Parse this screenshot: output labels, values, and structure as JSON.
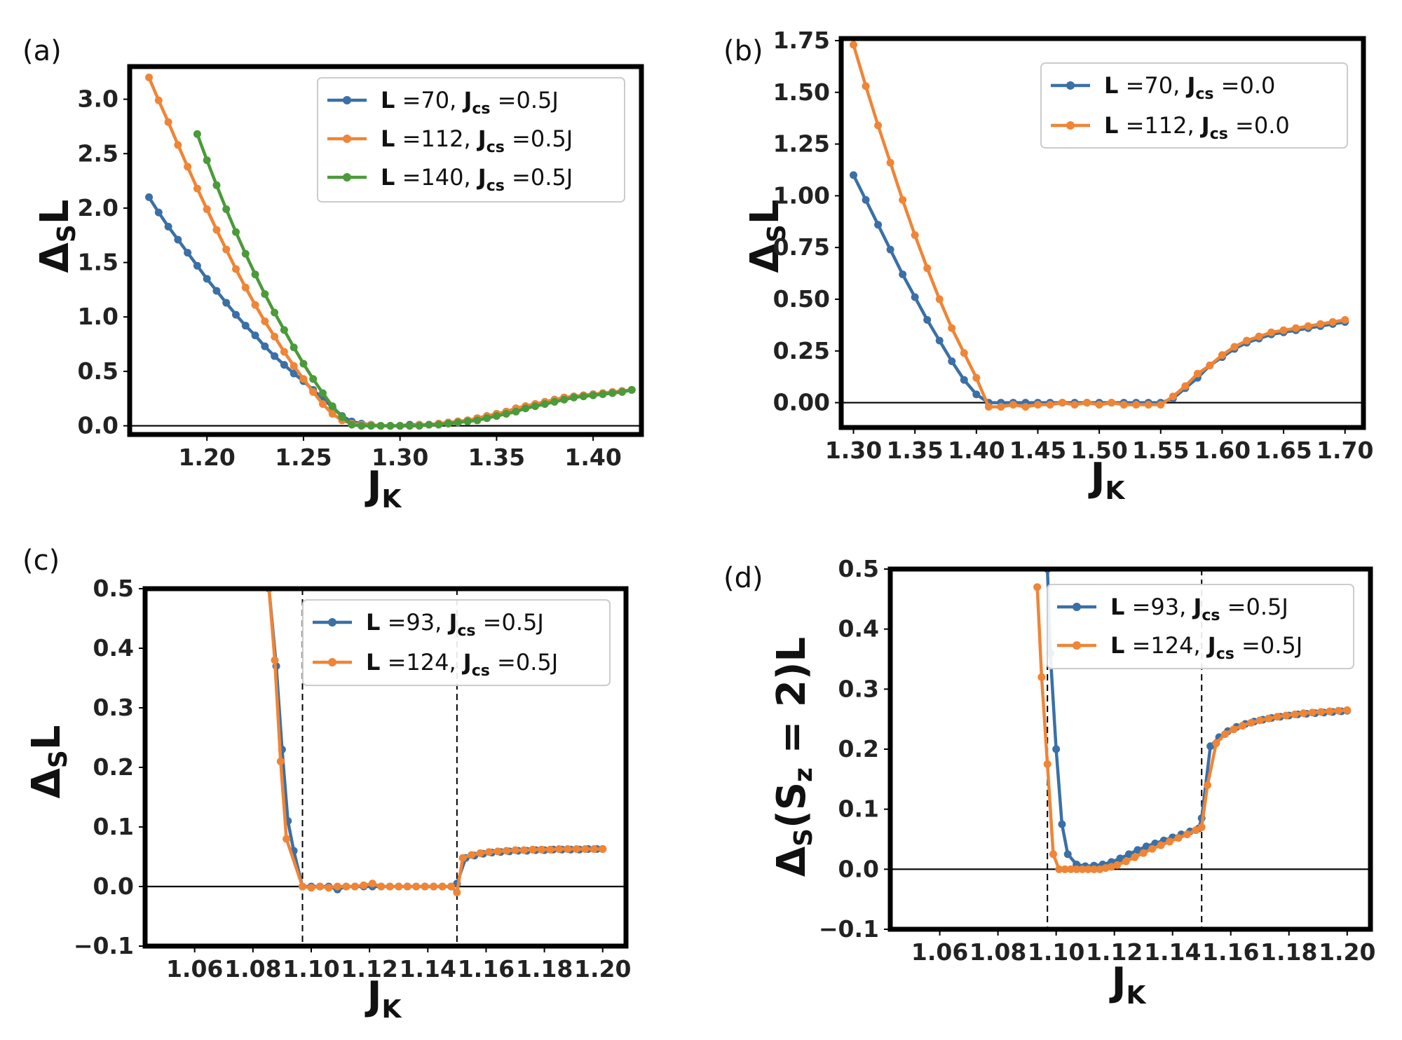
{
  "colors": {
    "blue": "#3a70a6",
    "orange": "#ef8536",
    "green": "#4b9a3b"
  },
  "chart_data": [
    {
      "type": "line",
      "panel_label": "(a)",
      "xlabel": "J_K",
      "ylabel": "Δ_S L",
      "xlim": [
        1.16,
        1.425
      ],
      "ylim": [
        -0.08,
        3.3
      ],
      "xticks": [
        1.2,
        1.25,
        1.3,
        1.35,
        1.4
      ],
      "xtick_labels": [
        "1.20",
        "1.25",
        "1.30",
        "1.35",
        "1.40"
      ],
      "yticks": [
        0,
        0.5,
        1,
        1.5,
        2,
        2.5,
        3
      ],
      "ytick_labels": [
        "0.0",
        "0.5",
        "1.0",
        "1.5",
        "2.0",
        "2.5",
        "3.0"
      ],
      "hline": 0,
      "vlines": [],
      "legend_position": "top-right",
      "series": [
        {
          "name": "L =70, J_cs =0.5J",
          "L": "70",
          "Jcs": "0.5J",
          "color": "blue",
          "x": [
            1.17,
            1.175,
            1.18,
            1.185,
            1.19,
            1.195,
            1.2,
            1.205,
            1.21,
            1.215,
            1.22,
            1.225,
            1.23,
            1.235,
            1.24,
            1.245,
            1.25,
            1.255,
            1.26,
            1.265,
            1.27,
            1.275,
            1.28,
            1.285,
            1.29,
            1.295,
            1.3,
            1.305,
            1.31,
            1.315,
            1.32,
            1.325,
            1.33,
            1.335,
            1.34,
            1.345,
            1.35,
            1.355,
            1.36,
            1.365,
            1.37,
            1.375,
            1.38,
            1.385,
            1.39,
            1.395,
            1.4,
            1.405,
            1.41,
            1.415,
            1.42
          ],
          "y": [
            2.1,
            1.96,
            1.83,
            1.71,
            1.59,
            1.47,
            1.35,
            1.24,
            1.13,
            1.02,
            0.92,
            0.83,
            0.73,
            0.64,
            0.56,
            0.48,
            0.41,
            0.33,
            0.25,
            0.17,
            0.09,
            0.04,
            0.02,
            0.01,
            0.0,
            0.0,
            0.0,
            0.01,
            0.01,
            0.01,
            0.02,
            0.03,
            0.04,
            0.05,
            0.07,
            0.09,
            0.11,
            0.13,
            0.16,
            0.18,
            0.2,
            0.22,
            0.24,
            0.26,
            0.27,
            0.28,
            0.29,
            0.3,
            0.31,
            0.32,
            0.33
          ]
        },
        {
          "name": "L =112, J_cs =0.5J",
          "L": "112",
          "Jcs": "0.5J",
          "color": "orange",
          "x": [
            1.17,
            1.175,
            1.18,
            1.185,
            1.19,
            1.195,
            1.2,
            1.205,
            1.21,
            1.215,
            1.22,
            1.225,
            1.23,
            1.235,
            1.24,
            1.245,
            1.25,
            1.255,
            1.26,
            1.265,
            1.27,
            1.275,
            1.28,
            1.285,
            1.29,
            1.295,
            1.3,
            1.305,
            1.31,
            1.315,
            1.32,
            1.325,
            1.33,
            1.335,
            1.34,
            1.345,
            1.35,
            1.355,
            1.36,
            1.365,
            1.37,
            1.375,
            1.38,
            1.385,
            1.39,
            1.395,
            1.4,
            1.405,
            1.41,
            1.415,
            1.42
          ],
          "y": [
            3.2,
            2.99,
            2.79,
            2.58,
            2.38,
            2.18,
            1.99,
            1.8,
            1.62,
            1.44,
            1.27,
            1.11,
            0.96,
            0.82,
            0.68,
            0.55,
            0.43,
            0.31,
            0.2,
            0.11,
            0.05,
            0.02,
            0.01,
            0.01,
            0.0,
            0.0,
            0.0,
            0.0,
            0.01,
            0.01,
            0.02,
            0.03,
            0.04,
            0.05,
            0.07,
            0.09,
            0.11,
            0.13,
            0.16,
            0.18,
            0.2,
            0.22,
            0.24,
            0.26,
            0.27,
            0.28,
            0.29,
            0.3,
            0.31,
            0.32,
            0.33
          ]
        },
        {
          "name": "L =140, J_cs =0.5J",
          "L": "140",
          "Jcs": "0.5J",
          "color": "green",
          "x": [
            1.195,
            1.2,
            1.205,
            1.21,
            1.215,
            1.22,
            1.225,
            1.23,
            1.235,
            1.24,
            1.245,
            1.25,
            1.255,
            1.26,
            1.265,
            1.27,
            1.275,
            1.28,
            1.285,
            1.29,
            1.295,
            1.3,
            1.305,
            1.31,
            1.315,
            1.32,
            1.325,
            1.33,
            1.335,
            1.34,
            1.345,
            1.35,
            1.355,
            1.36,
            1.365,
            1.37,
            1.375,
            1.38,
            1.385,
            1.39,
            1.395,
            1.4,
            1.405,
            1.41,
            1.415,
            1.42
          ],
          "y": [
            2.68,
            2.44,
            2.21,
            1.99,
            1.78,
            1.58,
            1.39,
            1.21,
            1.04,
            0.88,
            0.72,
            0.57,
            0.43,
            0.3,
            0.18,
            0.08,
            0.01,
            0.0,
            0.0,
            0.0,
            0.0,
            0.0,
            0.0,
            0.0,
            0.01,
            0.01,
            0.02,
            0.03,
            0.04,
            0.05,
            0.07,
            0.09,
            0.11,
            0.13,
            0.16,
            0.18,
            0.2,
            0.22,
            0.24,
            0.26,
            0.27,
            0.28,
            0.29,
            0.3,
            0.31,
            0.33
          ]
        }
      ]
    },
    {
      "type": "line",
      "panel_label": "(b)",
      "xlabel": "J_K",
      "ylabel": "Δ_S L",
      "xlim": [
        1.29,
        1.715
      ],
      "ylim": [
        -0.12,
        1.76
      ],
      "xticks": [
        1.3,
        1.35,
        1.4,
        1.45,
        1.5,
        1.55,
        1.6,
        1.65,
        1.7
      ],
      "xtick_labels": [
        "1.30",
        "1.35",
        "1.40",
        "1.45",
        "1.50",
        "1.55",
        "1.60",
        "1.65",
        "1.70"
      ],
      "yticks": [
        0,
        0.25,
        0.5,
        0.75,
        1,
        1.25,
        1.5,
        1.75
      ],
      "ytick_labels": [
        "0.00",
        "0.25",
        "0.50",
        "0.75",
        "1.00",
        "1.25",
        "1.50",
        "1.75"
      ],
      "hline": 0,
      "vlines": [],
      "legend_position": "top-right",
      "series": [
        {
          "name": "L =70, J_cs =0.0",
          "L": "70",
          "Jcs": "0.0",
          "color": "blue",
          "x": [
            1.3,
            1.31,
            1.32,
            1.33,
            1.34,
            1.35,
            1.36,
            1.37,
            1.38,
            1.39,
            1.4,
            1.41,
            1.42,
            1.43,
            1.44,
            1.45,
            1.46,
            1.47,
            1.48,
            1.49,
            1.5,
            1.51,
            1.52,
            1.53,
            1.54,
            1.55,
            1.56,
            1.57,
            1.58,
            1.59,
            1.6,
            1.61,
            1.62,
            1.63,
            1.64,
            1.65,
            1.66,
            1.67,
            1.68,
            1.69,
            1.7
          ],
          "y": [
            1.1,
            0.98,
            0.86,
            0.74,
            0.62,
            0.51,
            0.4,
            0.3,
            0.2,
            0.11,
            0.04,
            0.0,
            0.0,
            0.0,
            0.0,
            0.0,
            0.0,
            0.0,
            0.0,
            0.0,
            0.0,
            0.0,
            0.0,
            0.0,
            0.0,
            0.0,
            0.02,
            0.07,
            0.12,
            0.18,
            0.22,
            0.26,
            0.29,
            0.31,
            0.33,
            0.34,
            0.35,
            0.36,
            0.37,
            0.38,
            0.39
          ]
        },
        {
          "name": "L =112, J_cs =0.0",
          "L": "112",
          "Jcs": "0.0",
          "color": "orange",
          "x": [
            1.3,
            1.31,
            1.32,
            1.33,
            1.34,
            1.35,
            1.36,
            1.37,
            1.38,
            1.39,
            1.4,
            1.41,
            1.42,
            1.43,
            1.44,
            1.45,
            1.46,
            1.47,
            1.48,
            1.49,
            1.5,
            1.51,
            1.52,
            1.53,
            1.54,
            1.55,
            1.56,
            1.57,
            1.58,
            1.59,
            1.6,
            1.61,
            1.62,
            1.63,
            1.64,
            1.65,
            1.66,
            1.67,
            1.68,
            1.69,
            1.7
          ],
          "y": [
            1.73,
            1.53,
            1.34,
            1.16,
            0.98,
            0.81,
            0.65,
            0.5,
            0.36,
            0.24,
            0.12,
            -0.02,
            -0.02,
            -0.01,
            -0.02,
            -0.01,
            -0.01,
            0.0,
            -0.01,
            0.0,
            -0.01,
            0.0,
            -0.01,
            -0.01,
            -0.01,
            -0.01,
            0.03,
            0.08,
            0.14,
            0.18,
            0.23,
            0.27,
            0.3,
            0.32,
            0.34,
            0.35,
            0.36,
            0.37,
            0.38,
            0.39,
            0.4
          ]
        }
      ]
    },
    {
      "type": "line",
      "panel_label": "(c)",
      "xlabel": "J_K",
      "ylabel": "Δ_S L",
      "xlim": [
        1.043,
        1.208
      ],
      "ylim": [
        -0.1,
        0.5
      ],
      "xticks": [
        1.06,
        1.08,
        1.1,
        1.12,
        1.14,
        1.16,
        1.18,
        1.2
      ],
      "xtick_labels": [
        "1.06",
        "1.08",
        "1.10",
        "1.12",
        "1.14",
        "1.16",
        "1.18",
        "1.20"
      ],
      "yticks": [
        -0.1,
        0,
        0.1,
        0.2,
        0.3,
        0.4,
        0.5
      ],
      "ytick_labels": [
        "−0.1",
        "0.0",
        "0.1",
        "0.2",
        "0.3",
        "0.4",
        "0.5"
      ],
      "hline": 0,
      "vlines": [
        1.097,
        1.15
      ],
      "legend_position": "top-right",
      "series": [
        {
          "name": "L =93, J_cs =0.5J",
          "L": "93",
          "Jcs": "0.5J",
          "color": "blue",
          "x": [
            1.0855,
            1.088,
            1.09,
            1.092,
            1.094,
            1.097,
            1.1,
            1.103,
            1.106,
            1.109,
            1.112,
            1.115,
            1.118,
            1.121,
            1.124,
            1.127,
            1.13,
            1.133,
            1.136,
            1.139,
            1.142,
            1.145,
            1.148,
            1.15,
            1.153,
            1.156,
            1.159,
            1.162,
            1.165,
            1.168,
            1.171,
            1.174,
            1.177,
            1.18,
            1.183,
            1.186,
            1.189,
            1.192,
            1.195,
            1.198,
            1.2
          ],
          "y": [
            0.5,
            0.37,
            0.23,
            0.11,
            0.06,
            0.0,
            0.0,
            0.0,
            0.0,
            -0.005,
            0.0,
            0.0,
            0.0,
            0.0,
            0.0,
            0.0,
            0.0,
            0.0,
            0.0,
            0.0,
            0.0,
            0.0,
            0.0,
            0.005,
            0.048,
            0.052,
            0.055,
            0.057,
            0.058,
            0.059,
            0.06,
            0.06,
            0.061,
            0.061,
            0.062,
            0.062,
            0.062,
            0.062,
            0.063,
            0.063,
            0.063
          ]
        },
        {
          "name": "L =124, J_cs =0.5J",
          "L": "124",
          "Jcs": "0.5J",
          "color": "orange",
          "x": [
            1.0855,
            1.0875,
            1.0895,
            1.0915,
            1.097,
            1.1,
            1.103,
            1.106,
            1.109,
            1.112,
            1.115,
            1.118,
            1.121,
            1.124,
            1.127,
            1.13,
            1.133,
            1.136,
            1.139,
            1.142,
            1.145,
            1.148,
            1.15,
            1.152,
            1.155,
            1.158,
            1.161,
            1.164,
            1.167,
            1.17,
            1.173,
            1.176,
            1.179,
            1.182,
            1.185,
            1.188,
            1.191,
            1.194,
            1.197,
            1.2
          ],
          "y": [
            0.5,
            0.38,
            0.21,
            0.08,
            0.0,
            -0.002,
            0.0,
            -0.002,
            0.0,
            0.0,
            0.0,
            0.002,
            0.005,
            0.0,
            0.0,
            0.0,
            0.0,
            0.0,
            0.0,
            0.0,
            0.0,
            0.0,
            -0.01,
            0.048,
            0.053,
            0.056,
            0.058,
            0.059,
            0.06,
            0.061,
            0.061,
            0.062,
            0.062,
            0.062,
            0.063,
            0.063,
            0.063,
            0.063,
            0.063,
            0.063
          ]
        }
      ]
    },
    {
      "type": "line",
      "panel_label": "(d)",
      "xlabel": "J_K",
      "ylabel": "Δ_S(S_z = 2)L",
      "xlim": [
        1.043,
        1.208
      ],
      "ylim": [
        -0.1,
        0.5
      ],
      "xticks": [
        1.06,
        1.08,
        1.1,
        1.12,
        1.14,
        1.16,
        1.18,
        1.2
      ],
      "xtick_labels": [
        "1.06",
        "1.08",
        "1.10",
        "1.12",
        "1.14",
        "1.16",
        "1.18",
        "1.20"
      ],
      "yticks": [
        -0.1,
        0,
        0.1,
        0.2,
        0.3,
        0.4,
        0.5
      ],
      "ytick_labels": [
        "−0.1",
        "0.0",
        "0.1",
        "0.2",
        "0.3",
        "0.4",
        "0.5"
      ],
      "hline": 0,
      "vlines": [
        1.097,
        1.15
      ],
      "legend_position": "top-right",
      "series": [
        {
          "name": "L =93, J_cs =0.5J",
          "L": "93",
          "Jcs": "0.5J",
          "color": "blue",
          "x": [
            1.097,
            1.098,
            1.1,
            1.102,
            1.104,
            1.107,
            1.11,
            1.113,
            1.116,
            1.119,
            1.122,
            1.125,
            1.128,
            1.131,
            1.134,
            1.137,
            1.14,
            1.143,
            1.146,
            1.149,
            1.15,
            1.153,
            1.156,
            1.159,
            1.162,
            1.165,
            1.168,
            1.171,
            1.174,
            1.177,
            1.18,
            1.183,
            1.186,
            1.189,
            1.192,
            1.195,
            1.198,
            1.2
          ],
          "y": [
            0.5,
            0.36,
            0.2,
            0.075,
            0.025,
            0.008,
            0.005,
            0.006,
            0.008,
            0.012,
            0.018,
            0.025,
            0.032,
            0.038,
            0.043,
            0.048,
            0.053,
            0.058,
            0.063,
            0.068,
            0.085,
            0.205,
            0.22,
            0.23,
            0.237,
            0.242,
            0.246,
            0.249,
            0.252,
            0.254,
            0.256,
            0.258,
            0.259,
            0.26,
            0.261,
            0.262,
            0.263,
            0.264
          ]
        },
        {
          "name": "L =124, J_cs =0.5J",
          "L": "124",
          "Jcs": "0.5J",
          "color": "orange",
          "x": [
            1.0935,
            1.095,
            1.097,
            1.099,
            1.101,
            1.103,
            1.105,
            1.107,
            1.109,
            1.111,
            1.113,
            1.115,
            1.117,
            1.119,
            1.121,
            1.124,
            1.127,
            1.13,
            1.133,
            1.136,
            1.139,
            1.142,
            1.145,
            1.148,
            1.15,
            1.152,
            1.155,
            1.158,
            1.161,
            1.164,
            1.167,
            1.17,
            1.173,
            1.176,
            1.179,
            1.182,
            1.185,
            1.188,
            1.191,
            1.194,
            1.197,
            1.2
          ],
          "y": [
            0.47,
            0.32,
            0.175,
            0.025,
            0.0,
            0.0,
            0.0,
            0.0,
            0.0,
            0.0,
            0.0,
            0.0,
            0.002,
            0.004,
            0.007,
            0.013,
            0.02,
            0.027,
            0.034,
            0.04,
            0.046,
            0.052,
            0.058,
            0.065,
            0.07,
            0.14,
            0.21,
            0.225,
            0.233,
            0.239,
            0.244,
            0.248,
            0.251,
            0.254,
            0.256,
            0.258,
            0.26,
            0.261,
            0.262,
            0.263,
            0.264,
            0.265
          ]
        }
      ]
    }
  ]
}
